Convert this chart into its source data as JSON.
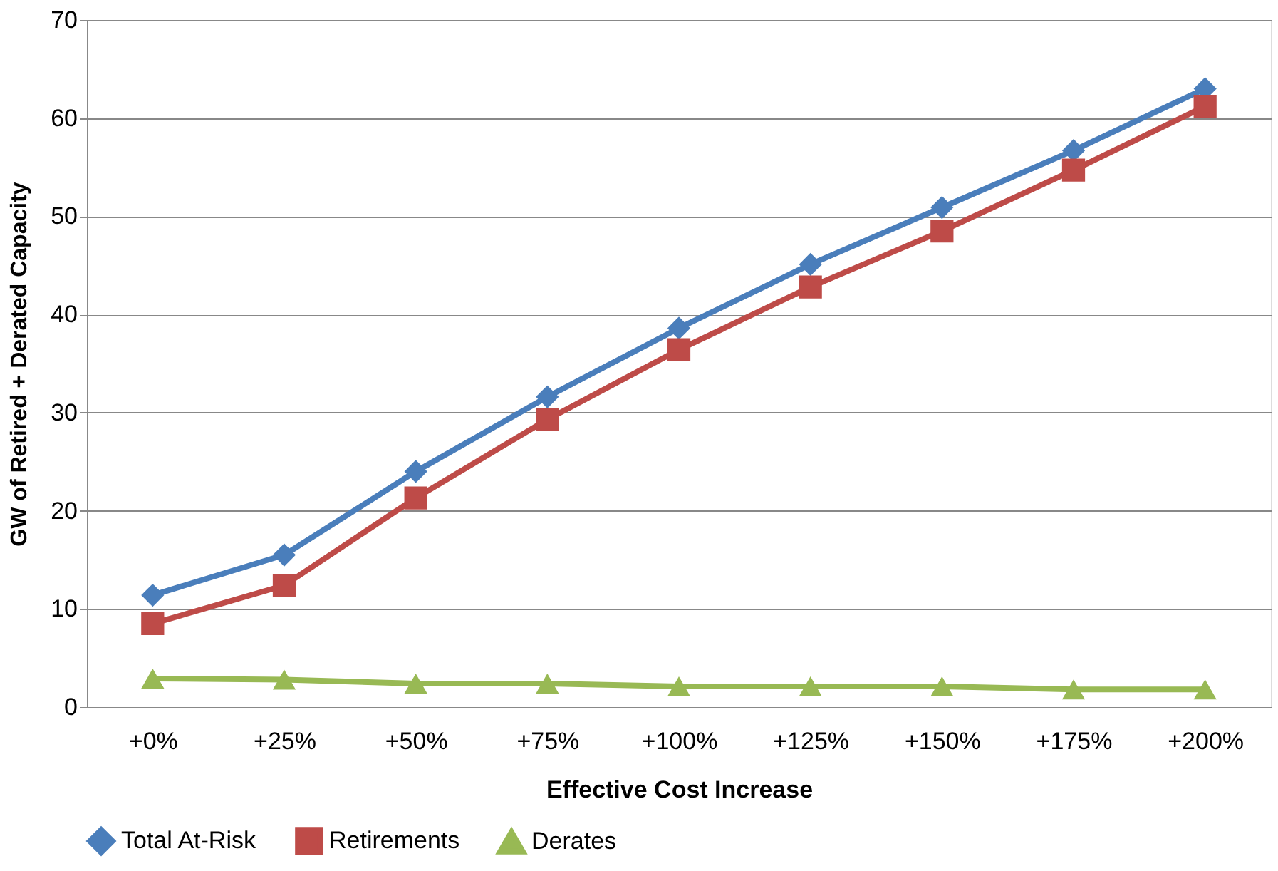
{
  "chart_data": {
    "type": "line",
    "xlabel": "Effective Cost Increase",
    "ylabel": "GW of Retired + Derated Capacity",
    "categories": [
      "+0%",
      "+25%",
      "+50%",
      "+75%",
      "+100%",
      "+125%",
      "+150%",
      "+175%",
      "+200%"
    ],
    "series": [
      {
        "name": "Total At-Risk",
        "color": "#4a7ebb",
        "marker": "diamond",
        "values": [
          11.4,
          15.5,
          24.0,
          31.6,
          38.6,
          45.1,
          50.9,
          56.7,
          63.0
        ]
      },
      {
        "name": "Retirements",
        "color": "#be4b48",
        "marker": "square",
        "values": [
          8.5,
          12.4,
          21.3,
          29.3,
          36.4,
          42.8,
          48.5,
          54.7,
          61.2
        ]
      },
      {
        "name": "Derates",
        "color": "#98b954",
        "marker": "triangle",
        "values": [
          2.9,
          2.8,
          2.4,
          2.4,
          2.1,
          2.1,
          2.1,
          1.8,
          1.8
        ]
      }
    ],
    "ylim": [
      0,
      70
    ],
    "yticks": [
      0,
      10,
      20,
      30,
      40,
      50,
      60,
      70
    ],
    "grid": "y",
    "legend": "bottom",
    "line_style": "solid"
  }
}
